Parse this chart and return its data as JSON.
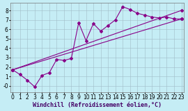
{
  "bg_color": "#c5edf5",
  "grid_color": "#a0bcc8",
  "line_color": "#880088",
  "xlabel": "Windchill (Refroidissement éolien,°C)",
  "xlabel_fontsize": 6.0,
  "tick_fontsize": 5.5,
  "xlim": [
    -0.3,
    23.3
  ],
  "ylim": [
    -0.65,
    8.8
  ],
  "yticks": [
    0,
    1,
    2,
    3,
    4,
    5,
    6,
    7,
    8
  ],
  "ytick_labels": [
    "-0",
    "1",
    "2",
    "3",
    "4",
    "5",
    "6",
    "7",
    "8"
  ],
  "xticks": [
    0,
    1,
    2,
    3,
    4,
    5,
    6,
    7,
    8,
    9,
    10,
    11,
    12,
    13,
    14,
    15,
    16,
    17,
    18,
    19,
    20,
    21,
    22,
    23
  ],
  "series1_x": [
    0,
    1,
    2,
    3,
    4,
    5,
    6,
    7,
    8,
    9,
    10,
    11,
    12,
    13,
    14,
    15,
    16,
    17,
    18,
    19,
    20,
    21,
    22,
    23
  ],
  "series1_y": [
    1.7,
    1.2,
    0.6,
    -0.1,
    1.1,
    1.4,
    2.8,
    2.7,
    2.9,
    6.7,
    4.8,
    6.6,
    5.8,
    6.4,
    7.0,
    8.4,
    8.1,
    7.7,
    7.5,
    7.3,
    7.2,
    7.3,
    7.1,
    7.1
  ],
  "series2_x": [
    0,
    23
  ],
  "series2_y": [
    1.7,
    8.0
  ],
  "series3_x": [
    0,
    23
  ],
  "series3_y": [
    1.7,
    7.1
  ]
}
